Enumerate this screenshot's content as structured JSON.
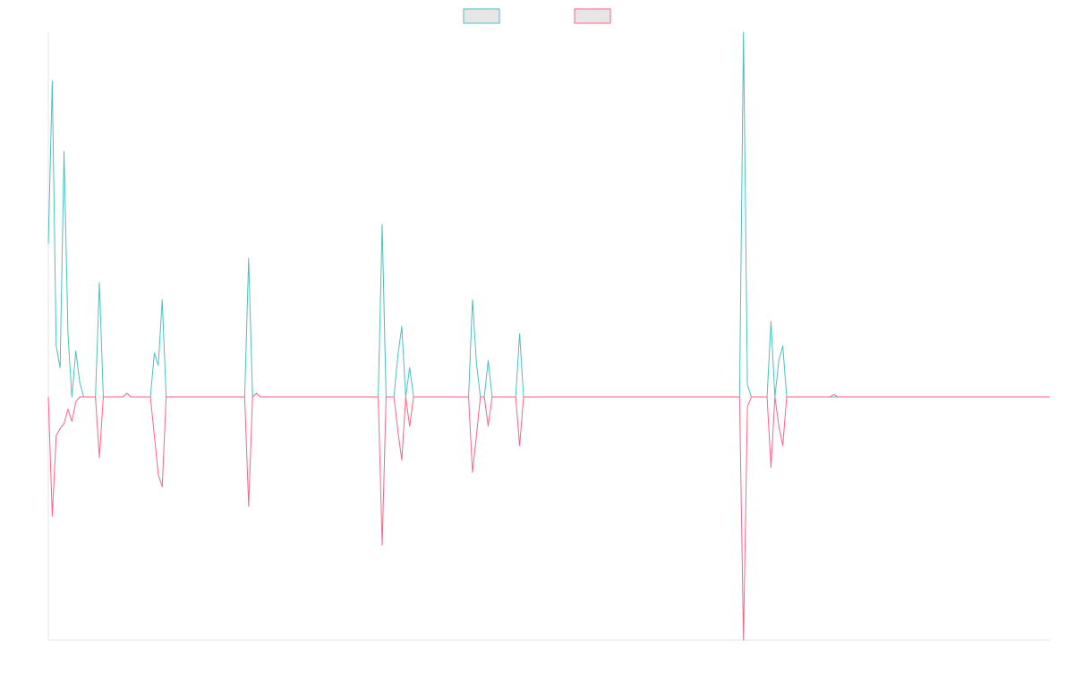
{
  "chart_data": {
    "type": "line",
    "title": "",
    "xlabel": "",
    "ylabel": "",
    "xlim": [
      0,
      255
    ],
    "ylim": [
      -1.0,
      1.5
    ],
    "grid": false,
    "legend_position": "top-center",
    "x_ticks_shown": false,
    "y_ticks_shown": false,
    "series": [
      {
        "name": "",
        "color": "#4bc0c0",
        "fill": "#e6e6e6",
        "values": [
          0.63,
          1.3,
          0.21,
          0.12,
          1.01,
          0.26,
          0.0,
          0.19,
          0.06,
          0.0,
          0.0,
          0.0,
          0.0,
          0.47,
          0.0,
          0.0,
          0.0,
          0.0,
          0.0,
          0.0,
          0.015,
          0.0,
          0.0,
          0.0,
          0.0,
          0.0,
          0.0,
          0.18,
          0.13,
          0.4,
          0.0,
          0.0,
          0.0,
          0.0,
          0.0,
          0.0,
          0.0,
          0.0,
          0.0,
          0.0,
          0.0,
          0.0,
          0.0,
          0.0,
          0.0,
          0.0,
          0.0,
          0.0,
          0.0,
          0.0,
          0.0,
          0.57,
          0.0,
          0.015,
          0.0,
          0.0,
          0.0,
          0.0,
          0.0,
          0.0,
          0.0,
          0.0,
          0.0,
          0.0,
          0.0,
          0.0,
          0.0,
          0.0,
          0.0,
          0.0,
          0.0,
          0.0,
          0.0,
          0.0,
          0.0,
          0.0,
          0.0,
          0.0,
          0.0,
          0.0,
          0.0,
          0.0,
          0.0,
          0.0,
          0.0,
          0.71,
          0.0,
          0.0,
          0.0,
          0.17,
          0.29,
          0.0,
          0.12,
          0.0,
          0.0,
          0.0,
          0.0,
          0.0,
          0.0,
          0.0,
          0.0,
          0.0,
          0.0,
          0.0,
          0.0,
          0.0,
          0.0,
          0.0,
          0.4,
          0.14,
          0.0,
          0.0,
          0.15,
          0.0,
          0.0,
          0.0,
          0.0,
          0.0,
          0.0,
          0.0,
          0.26,
          0.0,
          0.0,
          0.0,
          0.0,
          0.0,
          0.0,
          0.0,
          0.0,
          0.0,
          0.0,
          0.0,
          0.0,
          0.0,
          0.0,
          0.0,
          0.0,
          0.0,
          0.0,
          0.0,
          0.0,
          0.0,
          0.0,
          0.0,
          0.0,
          0.0,
          0.0,
          0.0,
          0.0,
          0.0,
          0.0,
          0.0,
          0.0,
          0.0,
          0.0,
          0.0,
          0.0,
          0.0,
          0.0,
          0.0,
          0.0,
          0.0,
          0.0,
          0.0,
          0.0,
          0.0,
          0.0,
          0.0,
          0.0,
          0.0,
          0.0,
          0.0,
          0.0,
          0.0,
          0.0,
          0.0,
          0.0,
          1.5,
          0.05,
          0.0,
          0.0,
          0.0,
          0.0,
          0.0,
          0.31,
          0.0,
          0.15,
          0.21,
          0.0,
          0.0,
          0.0,
          0.0,
          0.0,
          0.0,
          0.0,
          0.0,
          0.0,
          0.0,
          0.0,
          0.0,
          0.0,
          0.0,
          0.0,
          0.0,
          0.0,
          0.0,
          0.0,
          0.0,
          0.0,
          0.0,
          0.0,
          0.0,
          0.0,
          0.0,
          0.0,
          0.0,
          0.0,
          0.0,
          0.0,
          0.0,
          0.0,
          0.0,
          0.0,
          0.0,
          0.0,
          0.0,
          0.0,
          0.0,
          0.0,
          0.0,
          0.0,
          0.0,
          0.0,
          0.0,
          0.0,
          0.0,
          0.0,
          0.0,
          0.0,
          0.0,
          0.0,
          0.0,
          0.0,
          0.0,
          0.0,
          0.0,
          0.0,
          0.0,
          0.0,
          0.0,
          0.0,
          0.0,
          0.0,
          0.0,
          0.0,
          0.0
        ]
      },
      {
        "name": "",
        "color": "#ff6384",
        "fill": "#e6e6e6",
        "values": [
          0.0,
          -0.49,
          -0.16,
          -0.13,
          -0.11,
          -0.05,
          -0.1,
          -0.02,
          0.0,
          0.0,
          0.0,
          0.0,
          0.0,
          -0.25,
          0.0,
          0.0,
          0.0,
          0.0,
          0.0,
          0.0,
          0.015,
          0.0,
          0.0,
          0.0,
          0.0,
          0.0,
          0.0,
          -0.16,
          -0.32,
          -0.37,
          0.0,
          0.0,
          0.0,
          0.0,
          0.0,
          0.0,
          0.0,
          0.0,
          0.0,
          0.0,
          0.0,
          0.0,
          0.0,
          0.0,
          0.0,
          0.0,
          0.0,
          0.0,
          0.0,
          0.0,
          0.0,
          -0.45,
          0.0,
          0.015,
          0.0,
          0.0,
          0.0,
          0.0,
          0.0,
          0.0,
          0.0,
          0.0,
          0.0,
          0.0,
          0.0,
          0.0,
          0.0,
          0.0,
          0.0,
          0.0,
          0.0,
          0.0,
          0.0,
          0.0,
          0.0,
          0.0,
          0.0,
          0.0,
          0.0,
          0.0,
          0.0,
          0.0,
          0.0,
          0.0,
          0.0,
          -0.61,
          0.0,
          0.0,
          0.0,
          -0.14,
          -0.26,
          0.0,
          -0.12,
          0.0,
          0.0,
          0.0,
          0.0,
          0.0,
          0.0,
          0.0,
          0.0,
          0.0,
          0.0,
          0.0,
          0.0,
          0.0,
          0.0,
          0.0,
          -0.31,
          -0.16,
          0.0,
          0.0,
          -0.12,
          0.0,
          0.0,
          0.0,
          0.0,
          0.0,
          0.0,
          0.0,
          -0.2,
          0.0,
          0.0,
          0.0,
          0.0,
          0.0,
          0.0,
          0.0,
          0.0,
          0.0,
          0.0,
          0.0,
          0.0,
          0.0,
          0.0,
          0.0,
          0.0,
          0.0,
          0.0,
          0.0,
          0.0,
          0.0,
          0.0,
          0.0,
          0.0,
          0.0,
          0.0,
          0.0,
          0.0,
          0.0,
          0.0,
          0.0,
          0.0,
          0.0,
          0.0,
          0.0,
          0.0,
          0.0,
          0.0,
          0.0,
          0.0,
          0.0,
          0.0,
          0.0,
          0.0,
          0.0,
          0.0,
          0.0,
          0.0,
          0.0,
          0.0,
          0.0,
          0.0,
          0.0,
          0.0,
          0.0,
          0.0,
          -1.0,
          -0.04,
          0.0,
          0.0,
          0.0,
          0.0,
          0.0,
          -0.29,
          0.0,
          -0.12,
          -0.2,
          0.0,
          0.0,
          0.0,
          0.0,
          0.0,
          0.0,
          0.0,
          0.0,
          0.0,
          0.0,
          0.0,
          0.0,
          0.01,
          0.0,
          0.0,
          0.0,
          0.0,
          0.0,
          0.0,
          0.0,
          0.0,
          0.0,
          0.0,
          0.0,
          0.0,
          0.0,
          0.0,
          0.0,
          0.0,
          0.0,
          0.0,
          0.0,
          0.0,
          0.0,
          0.0,
          0.0,
          0.0,
          0.0,
          0.0,
          0.0,
          0.0,
          0.0,
          0.0,
          0.0,
          0.0,
          0.0,
          0.0,
          0.0,
          0.0,
          0.0,
          0.0,
          0.0,
          0.0,
          0.0,
          0.0,
          0.0,
          0.0,
          0.0,
          0.0,
          0.0,
          0.0,
          0.0,
          0.0,
          0.0,
          0.0,
          0.0,
          0.0,
          0.0
        ]
      }
    ]
  }
}
